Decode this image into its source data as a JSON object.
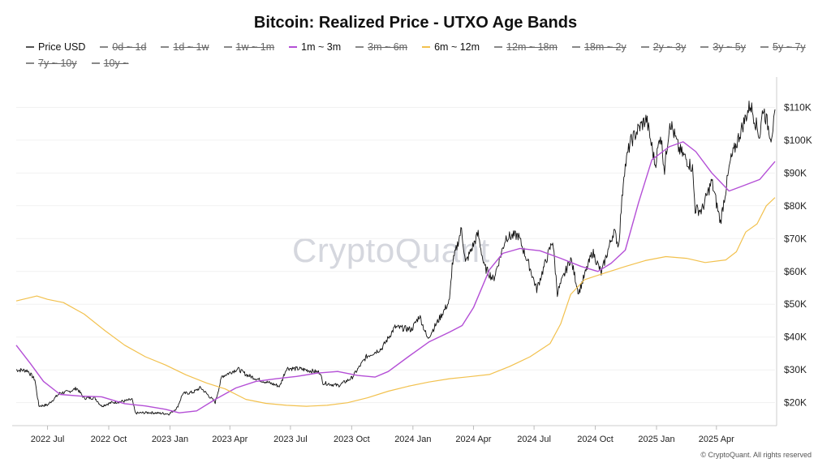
{
  "chart_data": {
    "type": "line",
    "title": "Bitcoin: Realized Price - UTXO Age Bands",
    "ylim": [
      13000,
      118000
    ],
    "y_ticks": [
      {
        "value": 20000,
        "label": "$20K"
      },
      {
        "value": 30000,
        "label": "$30K"
      },
      {
        "value": 40000,
        "label": "$40K"
      },
      {
        "value": 50000,
        "label": "$50K"
      },
      {
        "value": 60000,
        "label": "$60K"
      },
      {
        "value": 70000,
        "label": "$70K"
      },
      {
        "value": 80000,
        "label": "$80K"
      },
      {
        "value": 90000,
        "label": "$90K"
      },
      {
        "value": 100000,
        "label": "$100K"
      },
      {
        "value": 110000,
        "label": "$110K"
      }
    ],
    "x_range": [
      "2022-05-15",
      "2025-06-28"
    ],
    "x_ticks": [
      {
        "date": "2022-07-01",
        "label": "2022 Jul"
      },
      {
        "date": "2022-10-01",
        "label": "2022 Oct"
      },
      {
        "date": "2023-01-01",
        "label": "2023 Jan"
      },
      {
        "date": "2023-04-01",
        "label": "2023 Apr"
      },
      {
        "date": "2023-07-01",
        "label": "2023 Jul"
      },
      {
        "date": "2023-10-01",
        "label": "2023 Oct"
      },
      {
        "date": "2024-01-01",
        "label": "2024 Jan"
      },
      {
        "date": "2024-04-01",
        "label": "2024 Apr"
      },
      {
        "date": "2024-07-01",
        "label": "2024 Jul"
      },
      {
        "date": "2024-10-01",
        "label": "2024 Oct"
      },
      {
        "date": "2025-01-01",
        "label": "2025 Jan"
      },
      {
        "date": "2025-04-01",
        "label": "2025 Apr"
      }
    ],
    "grid": true,
    "legend_position": "top-left",
    "legend": [
      {
        "name": "Price USD",
        "color": "#555555",
        "visible": true
      },
      {
        "name": "0d ~ 1d",
        "color": "#888888",
        "visible": false
      },
      {
        "name": "1d ~ 1w",
        "color": "#888888",
        "visible": false
      },
      {
        "name": "1w ~ 1m",
        "color": "#888888",
        "visible": false
      },
      {
        "name": "1m ~ 3m",
        "color": "#b44fd6",
        "visible": true
      },
      {
        "name": "3m ~ 6m",
        "color": "#888888",
        "visible": false
      },
      {
        "name": "6m ~ 12m",
        "color": "#f2c14e",
        "visible": true
      },
      {
        "name": "12m ~ 18m",
        "color": "#888888",
        "visible": false
      },
      {
        "name": "18m ~ 2y",
        "color": "#888888",
        "visible": false
      },
      {
        "name": "2y ~ 3y",
        "color": "#888888",
        "visible": false
      },
      {
        "name": "3y ~ 5y",
        "color": "#888888",
        "visible": false
      },
      {
        "name": "5y ~ 7y",
        "color": "#888888",
        "visible": false
      },
      {
        "name": "7y ~ 10y",
        "color": "#888888",
        "visible": false
      },
      {
        "name": "10y ~",
        "color": "#888888",
        "visible": false
      }
    ],
    "series": [
      {
        "name": "Price USD",
        "color": "#111111",
        "width": 0.9,
        "noise": true,
        "points": [
          [
            "2022-05-15",
            30000
          ],
          [
            "2022-06-01",
            29800
          ],
          [
            "2022-06-12",
            27000
          ],
          [
            "2022-06-18",
            19000
          ],
          [
            "2022-07-01",
            19300
          ],
          [
            "2022-07-20",
            23000
          ],
          [
            "2022-08-01",
            23300
          ],
          [
            "2022-08-14",
            24400
          ],
          [
            "2022-08-25",
            21400
          ],
          [
            "2022-09-10",
            21500
          ],
          [
            "2022-09-20",
            19000
          ],
          [
            "2022-10-05",
            20000
          ],
          [
            "2022-10-25",
            20500
          ],
          [
            "2022-11-05",
            21000
          ],
          [
            "2022-11-10",
            16800
          ],
          [
            "2022-12-01",
            17000
          ],
          [
            "2022-12-31",
            16600
          ],
          [
            "2023-01-12",
            18500
          ],
          [
            "2023-01-20",
            22700
          ],
          [
            "2023-02-05",
            23200
          ],
          [
            "2023-02-16",
            24600
          ],
          [
            "2023-03-10",
            20100
          ],
          [
            "2023-03-20",
            28000
          ],
          [
            "2023-04-13",
            30300
          ],
          [
            "2023-04-26",
            28500
          ],
          [
            "2023-05-15",
            27000
          ],
          [
            "2023-06-15",
            25000
          ],
          [
            "2023-06-25",
            30500
          ],
          [
            "2023-07-15",
            30300
          ],
          [
            "2023-08-15",
            29200
          ],
          [
            "2023-08-18",
            26100
          ],
          [
            "2023-09-11",
            25200
          ],
          [
            "2023-10-01",
            27500
          ],
          [
            "2023-10-23",
            34000
          ],
          [
            "2023-11-15",
            36500
          ],
          [
            "2023-12-05",
            43000
          ],
          [
            "2023-12-30",
            42300
          ],
          [
            "2024-01-11",
            46500
          ],
          [
            "2024-01-23",
            39500
          ],
          [
            "2024-02-08",
            45000
          ],
          [
            "2024-02-25",
            51000
          ],
          [
            "2024-02-29",
            62000
          ],
          [
            "2024-03-14",
            73000
          ],
          [
            "2024-03-20",
            62500
          ],
          [
            "2024-04-08",
            71500
          ],
          [
            "2024-04-17",
            61500
          ],
          [
            "2024-05-01",
            57500
          ],
          [
            "2024-05-20",
            70500
          ],
          [
            "2024-06-07",
            71000
          ],
          [
            "2024-06-25",
            61000
          ],
          [
            "2024-07-05",
            54500
          ],
          [
            "2024-07-29",
            69500
          ],
          [
            "2024-08-05",
            53500
          ],
          [
            "2024-08-25",
            64000
          ],
          [
            "2024-09-06",
            53500
          ],
          [
            "2024-09-27",
            66000
          ],
          [
            "2024-10-10",
            59500
          ],
          [
            "2024-10-29",
            72500
          ],
          [
            "2024-11-05",
            67800
          ],
          [
            "2024-11-13",
            90000
          ],
          [
            "2024-11-22",
            99000
          ],
          [
            "2024-12-05",
            103500
          ],
          [
            "2024-12-17",
            106500
          ],
          [
            "2024-12-30",
            92500
          ],
          [
            "2025-01-07",
            102000
          ],
          [
            "2025-01-13",
            91000
          ],
          [
            "2025-01-21",
            106000
          ],
          [
            "2025-02-03",
            97500
          ],
          [
            "2025-02-24",
            91500
          ],
          [
            "2025-02-28",
            79000
          ],
          [
            "2025-03-10",
            78500
          ],
          [
            "2025-03-25",
            87500
          ],
          [
            "2025-04-07",
            75000
          ],
          [
            "2025-04-22",
            93500
          ],
          [
            "2025-05-08",
            103000
          ],
          [
            "2025-05-22",
            111000
          ],
          [
            "2025-06-05",
            101000
          ],
          [
            "2025-06-10",
            110000
          ],
          [
            "2025-06-22",
            101000
          ],
          [
            "2025-06-28",
            107000
          ]
        ]
      },
      {
        "name": "1m ~ 3m",
        "color": "#b44fd6",
        "width": 1.4,
        "points": [
          [
            "2022-05-15",
            37500
          ],
          [
            "2022-06-05",
            32000
          ],
          [
            "2022-06-25",
            26500
          ],
          [
            "2022-07-20",
            22500
          ],
          [
            "2022-08-20",
            22000
          ],
          [
            "2022-09-20",
            21800
          ],
          [
            "2022-10-25",
            19700
          ],
          [
            "2022-11-25",
            19000
          ],
          [
            "2022-12-25",
            18000
          ],
          [
            "2023-01-15",
            16900
          ],
          [
            "2023-02-10",
            17500
          ],
          [
            "2023-03-10",
            21000
          ],
          [
            "2023-04-10",
            24500
          ],
          [
            "2023-05-10",
            26500
          ],
          [
            "2023-06-10",
            27300
          ],
          [
            "2023-07-10",
            28000
          ],
          [
            "2023-08-10",
            29000
          ],
          [
            "2023-09-10",
            29500
          ],
          [
            "2023-10-10",
            28300
          ],
          [
            "2023-11-05",
            27800
          ],
          [
            "2023-11-25",
            29500
          ],
          [
            "2023-12-25",
            34000
          ],
          [
            "2024-01-25",
            38500
          ],
          [
            "2024-02-25",
            41500
          ],
          [
            "2024-03-15",
            43500
          ],
          [
            "2024-04-01",
            49000
          ],
          [
            "2024-04-25",
            60500
          ],
          [
            "2024-05-15",
            65500
          ],
          [
            "2024-06-10",
            67000
          ],
          [
            "2024-07-10",
            66300
          ],
          [
            "2024-08-10",
            64000
          ],
          [
            "2024-09-10",
            61500
          ],
          [
            "2024-10-05",
            60000
          ],
          [
            "2024-10-25",
            62500
          ],
          [
            "2024-11-15",
            66500
          ],
          [
            "2024-12-05",
            81000
          ],
          [
            "2024-12-25",
            94000
          ],
          [
            "2025-01-20",
            98000
          ],
          [
            "2025-02-10",
            99500
          ],
          [
            "2025-03-01",
            96500
          ],
          [
            "2025-03-25",
            90000
          ],
          [
            "2025-04-20",
            84500
          ],
          [
            "2025-05-10",
            86000
          ],
          [
            "2025-06-05",
            88000
          ],
          [
            "2025-06-28",
            93500
          ]
        ]
      },
      {
        "name": "6m ~ 12m",
        "color": "#f2c14e",
        "width": 1.2,
        "points": [
          [
            "2022-05-15",
            51000
          ],
          [
            "2022-06-15",
            52500
          ],
          [
            "2022-07-01",
            51500
          ],
          [
            "2022-07-25",
            50500
          ],
          [
            "2022-08-25",
            47000
          ],
          [
            "2022-09-25",
            42000
          ],
          [
            "2022-10-25",
            37500
          ],
          [
            "2022-11-25",
            34000
          ],
          [
            "2022-12-25",
            31500
          ],
          [
            "2023-01-25",
            28500
          ],
          [
            "2023-02-25",
            26000
          ],
          [
            "2023-03-25",
            24200
          ],
          [
            "2023-04-25",
            21000
          ],
          [
            "2023-05-25",
            19800
          ],
          [
            "2023-06-25",
            19200
          ],
          [
            "2023-07-25",
            18900
          ],
          [
            "2023-08-25",
            19200
          ],
          [
            "2023-09-25",
            20000
          ],
          [
            "2023-10-25",
            21500
          ],
          [
            "2023-11-25",
            23500
          ],
          [
            "2023-12-25",
            25000
          ],
          [
            "2024-01-25",
            26300
          ],
          [
            "2024-02-25",
            27300
          ],
          [
            "2024-03-25",
            27900
          ],
          [
            "2024-04-25",
            28600
          ],
          [
            "2024-05-25",
            31000
          ],
          [
            "2024-06-25",
            34000
          ],
          [
            "2024-07-25",
            38000
          ],
          [
            "2024-08-10",
            44000
          ],
          [
            "2024-08-25",
            53000
          ],
          [
            "2024-09-15",
            57500
          ],
          [
            "2024-10-15",
            59500
          ],
          [
            "2024-11-15",
            61500
          ],
          [
            "2024-12-15",
            63300
          ],
          [
            "2025-01-15",
            64500
          ],
          [
            "2025-02-15",
            64000
          ],
          [
            "2025-03-15",
            62700
          ],
          [
            "2025-04-15",
            63500
          ],
          [
            "2025-05-01",
            66000
          ],
          [
            "2025-05-15",
            72000
          ],
          [
            "2025-06-01",
            74500
          ],
          [
            "2025-06-15",
            80000
          ],
          [
            "2025-06-28",
            82500
          ]
        ]
      }
    ],
    "watermark": "CryptoQuant",
    "footer": "© CryptoQuant. All rights reserved"
  }
}
